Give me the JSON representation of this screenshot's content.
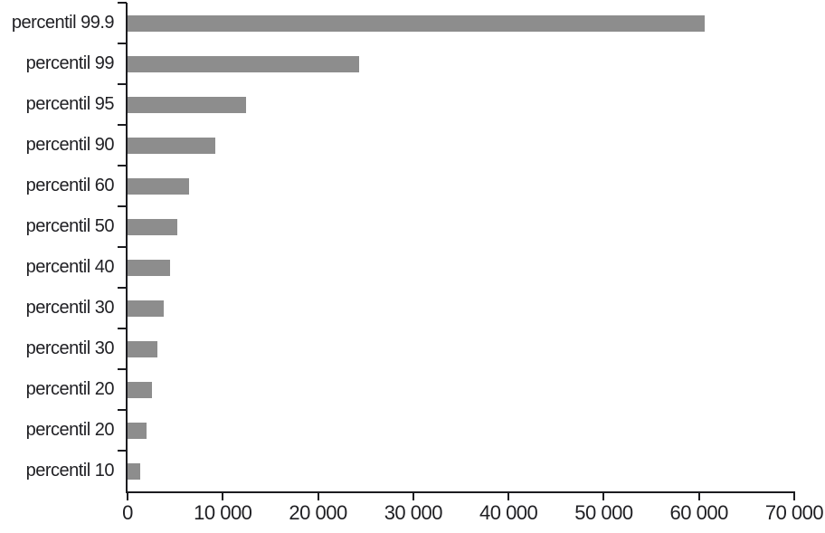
{
  "chart_data": {
    "type": "bar",
    "orientation": "horizontal",
    "categories": [
      "percentil 99.9",
      "percentil 99",
      "percentil 95",
      "percentil 90",
      "percentil 60",
      "percentil 50",
      "percentil 40",
      "percentil 30",
      "percentil 30",
      "percentil 20",
      "percentil 20",
      "percentil 10"
    ],
    "values": [
      60600,
      24300,
      12400,
      9200,
      6500,
      5200,
      4500,
      3800,
      3100,
      2600,
      2000,
      1300
    ],
    "xlim": [
      0,
      70000
    ],
    "x_ticks": [
      0,
      10000,
      20000,
      30000,
      40000,
      50000,
      60000,
      70000
    ],
    "x_tick_labels": [
      "0",
      "10 000",
      "20 000",
      "30 000",
      "40 000",
      "50 000",
      "60 000",
      "70 000"
    ],
    "grid": false,
    "legend": "none",
    "colors": {
      "bar": "#8d8d8d",
      "axis": "#1c1c20",
      "text": "#1f1f23",
      "background": "#ffffff"
    }
  }
}
